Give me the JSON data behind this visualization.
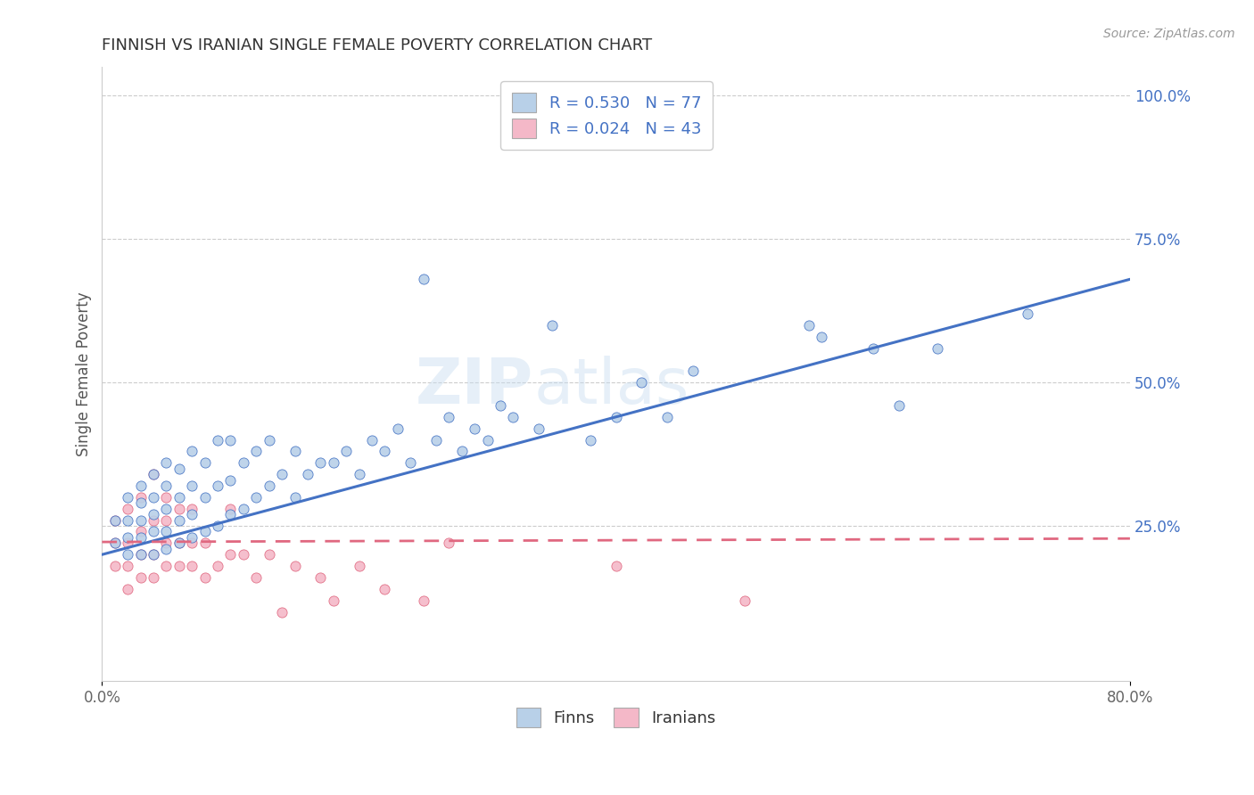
{
  "title": "FINNISH VS IRANIAN SINGLE FEMALE POVERTY CORRELATION CHART",
  "source": "Source: ZipAtlas.com",
  "ylabel": "Single Female Poverty",
  "xlim": [
    0.0,
    0.8
  ],
  "ylim": [
    -0.02,
    1.05
  ],
  "finn_color": "#b8d0e8",
  "iranian_color": "#f4b8c8",
  "finn_line_color": "#4472c4",
  "iranian_line_color": "#e06880",
  "legend_finn_label": "R = 0.530   N = 77",
  "legend_iranian_label": "R = 0.024   N = 43",
  "bottom_legend_finn": "Finns",
  "bottom_legend_iranian": "Iranians",
  "watermark": "ZIPAtlas",
  "finn_scatter_x": [
    0.01,
    0.01,
    0.02,
    0.02,
    0.02,
    0.02,
    0.03,
    0.03,
    0.03,
    0.03,
    0.03,
    0.04,
    0.04,
    0.04,
    0.04,
    0.04,
    0.05,
    0.05,
    0.05,
    0.05,
    0.05,
    0.06,
    0.06,
    0.06,
    0.06,
    0.07,
    0.07,
    0.07,
    0.07,
    0.08,
    0.08,
    0.08,
    0.09,
    0.09,
    0.09,
    0.1,
    0.1,
    0.1,
    0.11,
    0.11,
    0.12,
    0.12,
    0.13,
    0.13,
    0.14,
    0.15,
    0.15,
    0.16,
    0.17,
    0.18,
    0.19,
    0.2,
    0.21,
    0.22,
    0.23,
    0.24,
    0.25,
    0.26,
    0.27,
    0.28,
    0.29,
    0.3,
    0.31,
    0.32,
    0.34,
    0.35,
    0.38,
    0.4,
    0.42,
    0.44,
    0.46,
    0.55,
    0.56,
    0.6,
    0.62,
    0.65,
    0.72
  ],
  "finn_scatter_y": [
    0.22,
    0.26,
    0.2,
    0.23,
    0.26,
    0.3,
    0.2,
    0.23,
    0.26,
    0.29,
    0.32,
    0.2,
    0.24,
    0.27,
    0.3,
    0.34,
    0.21,
    0.24,
    0.28,
    0.32,
    0.36,
    0.22,
    0.26,
    0.3,
    0.35,
    0.23,
    0.27,
    0.32,
    0.38,
    0.24,
    0.3,
    0.36,
    0.25,
    0.32,
    0.4,
    0.27,
    0.33,
    0.4,
    0.28,
    0.36,
    0.3,
    0.38,
    0.32,
    0.4,
    0.34,
    0.3,
    0.38,
    0.34,
    0.36,
    0.36,
    0.38,
    0.34,
    0.4,
    0.38,
    0.42,
    0.36,
    0.68,
    0.4,
    0.44,
    0.38,
    0.42,
    0.4,
    0.46,
    0.44,
    0.42,
    0.6,
    0.4,
    0.44,
    0.5,
    0.44,
    0.52,
    0.6,
    0.58,
    0.56,
    0.46,
    0.56,
    0.62
  ],
  "iranian_scatter_x": [
    0.01,
    0.01,
    0.01,
    0.02,
    0.02,
    0.02,
    0.02,
    0.03,
    0.03,
    0.03,
    0.03,
    0.04,
    0.04,
    0.04,
    0.04,
    0.05,
    0.05,
    0.05,
    0.05,
    0.06,
    0.06,
    0.06,
    0.07,
    0.07,
    0.07,
    0.08,
    0.08,
    0.09,
    0.1,
    0.1,
    0.11,
    0.12,
    0.13,
    0.14,
    0.15,
    0.17,
    0.18,
    0.2,
    0.22,
    0.25,
    0.27,
    0.4,
    0.5
  ],
  "iranian_scatter_y": [
    0.18,
    0.22,
    0.26,
    0.14,
    0.18,
    0.22,
    0.28,
    0.16,
    0.2,
    0.24,
    0.3,
    0.16,
    0.2,
    0.26,
    0.34,
    0.18,
    0.22,
    0.26,
    0.3,
    0.18,
    0.22,
    0.28,
    0.18,
    0.22,
    0.28,
    0.16,
    0.22,
    0.18,
    0.2,
    0.28,
    0.2,
    0.16,
    0.2,
    0.1,
    0.18,
    0.16,
    0.12,
    0.18,
    0.14,
    0.12,
    0.22,
    0.18,
    0.12
  ],
  "finn_line_x0": 0.0,
  "finn_line_y0": 0.2,
  "finn_line_x1": 0.8,
  "finn_line_y1": 0.68,
  "iran_line_x0": 0.0,
  "iran_line_y0": 0.222,
  "iran_line_x1": 0.8,
  "iran_line_y1": 0.228
}
